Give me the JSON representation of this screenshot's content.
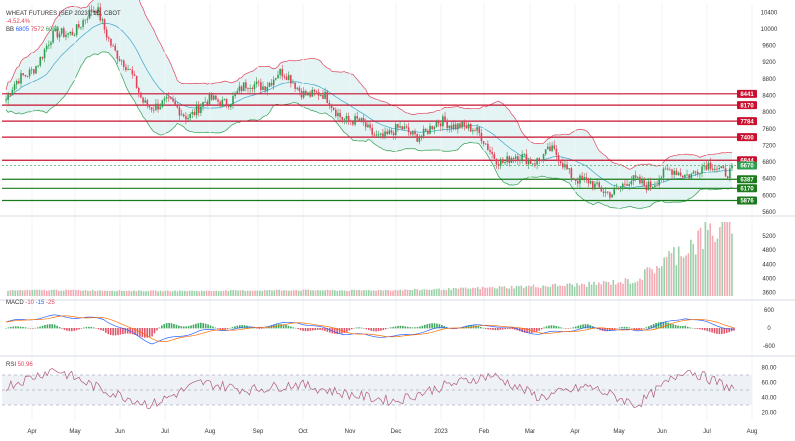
{
  "legend": {
    "title": "WHEAT FUTURES (SEP 2023), 1D, CBOT",
    "change": "-4.52.4%",
    "bb_label": "BB",
    "bb_values": [
      "6805",
      "7572",
      "6038"
    ],
    "macd_label": "MACD",
    "macd_values": [
      "-10",
      "-15",
      "-25"
    ],
    "rsi_label": "RSI",
    "rsi_value": "50.96"
  },
  "colors": {
    "up": "#2e9e4f",
    "down": "#e0435a",
    "resistance": "#c8102e",
    "support": "#1b7a1b",
    "bb_band": "#d8eef0",
    "bb_mid": "#3aa7c9",
    "rsi_band": "#eef2f7",
    "rsi_line": "#b05a7a",
    "macd_line": "#2962ff",
    "signal_line": "#ff6d00"
  },
  "price_axis_labels": [
    "10400",
    "10000",
    "9600",
    "9200",
    "8800",
    "8400",
    "8000",
    "7600",
    "7200",
    "6800",
    "6400",
    "6000",
    "5600",
    "5200",
    "4800",
    "4400",
    "4000",
    "3600"
  ],
  "level_tags": [
    {
      "label": "8441",
      "kind": "resistance"
    },
    {
      "label": "8170",
      "kind": "resistance"
    },
    {
      "label": "7784",
      "kind": "resistance"
    },
    {
      "label": "7400",
      "kind": "resistance"
    },
    {
      "label": "6844",
      "kind": "resistance"
    },
    {
      "label": "6670",
      "kind": "current"
    },
    {
      "label": "6387",
      "kind": "support"
    },
    {
      "label": "6170",
      "kind": "support"
    },
    {
      "label": "5876",
      "kind": "support"
    }
  ],
  "macd_axis_labels": [
    "600",
    "0",
    "-600"
  ],
  "rsi_axis_labels": [
    "80.00",
    "60.00",
    "40.00",
    "20.00"
  ],
  "x_axis_labels": [
    "Apr",
    "May",
    "Jun",
    "Jul",
    "Aug",
    "Sep",
    "Oct",
    "Nov",
    "Dec",
    "2023",
    "Feb",
    "Mar",
    "Apr",
    "May",
    "Jun",
    "Jul",
    "Aug"
  ],
  "chart_data": [
    {
      "type": "candlestick",
      "title": "WHEAT FUTURES (SEP 2023), 1D, CBOT",
      "x": [
        "Apr",
        "May",
        "Jun",
        "Jul",
        "Aug",
        "Sep",
        "Oct",
        "Nov",
        "Dec",
        "2023",
        "Feb",
        "Mar",
        "Apr",
        "May",
        "Jun",
        "Jul",
        "Aug"
      ],
      "close": [
        8300,
        9700,
        10400,
        8300,
        8000,
        8400,
        8900,
        8300,
        7500,
        7500,
        7800,
        6800,
        7000,
        6100,
        6300,
        6600,
        6670
      ],
      "ylim": [
        5600,
        10600
      ],
      "horizontal_levels": [
        8441,
        8170,
        7784,
        7400,
        6844,
        6387,
        6170,
        5876
      ]
    },
    {
      "type": "bar",
      "title": "Volume",
      "x": [
        "Apr",
        "May",
        "Jun",
        "Jul",
        "Aug",
        "Sep",
        "Oct",
        "Nov",
        "Dec",
        "2023",
        "Feb",
        "Mar",
        "Apr",
        "May",
        "Jun",
        "Jul"
      ],
      "values": [
        3650,
        3660,
        3650,
        3640,
        3640,
        3650,
        3660,
        3650,
        3660,
        3680,
        3720,
        3760,
        3800,
        3900,
        4700,
        5400
      ],
      "ylim": [
        3500,
        5600
      ]
    },
    {
      "type": "line",
      "title": "MACD",
      "x": [
        "Apr",
        "May",
        "Jun",
        "Jul",
        "Aug",
        "Sep",
        "Oct",
        "Nov",
        "Dec",
        "2023",
        "Feb",
        "Mar",
        "Apr",
        "May",
        "Jun",
        "Jul"
      ],
      "series": [
        {
          "values": [
            200,
            400,
            300,
            -500,
            -100,
            0,
            200,
            -200,
            -300,
            0,
            100,
            -200,
            0,
            -100,
            350,
            -50
          ]
        }
      ],
      "ylim": [
        -800,
        800
      ]
    },
    {
      "type": "line",
      "title": "RSI",
      "x": [
        "Apr",
        "May",
        "Jun",
        "Jul",
        "Aug",
        "Sep",
        "Oct",
        "Nov",
        "Dec",
        "2023",
        "Feb",
        "Mar",
        "Apr",
        "May",
        "Jun",
        "Jul"
      ],
      "series": [
        {
          "values": [
            55,
            78,
            50,
            30,
            60,
            50,
            58,
            45,
            35,
            55,
            70,
            40,
            55,
            30,
            78,
            51
          ]
        }
      ],
      "ylim": [
        10,
        90
      ],
      "bands": [
        70,
        30
      ]
    }
  ]
}
